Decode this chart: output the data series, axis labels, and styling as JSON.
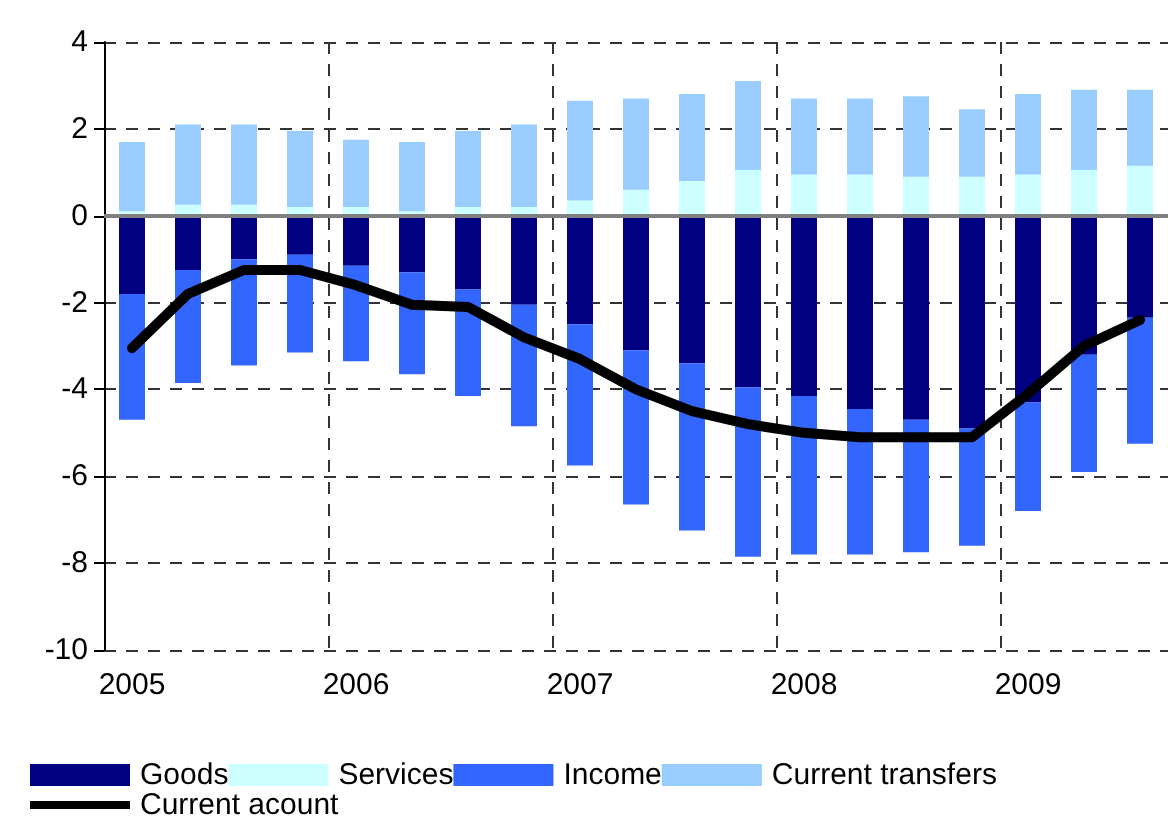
{
  "chart_data": {
    "type": "bar",
    "stacked": true,
    "categories": [
      "2005",
      null,
      null,
      null,
      "2006",
      null,
      null,
      null,
      "2007",
      null,
      null,
      null,
      "2008",
      null,
      null,
      null,
      "2009",
      null,
      null
    ],
    "series": [
      {
        "name": "Goods",
        "color": "#000080",
        "values": [
          -1.8,
          -1.25,
          -1.0,
          -0.9,
          -1.15,
          -1.3,
          -1.7,
          -2.05,
          -2.5,
          -3.1,
          -3.4,
          -3.95,
          -4.15,
          -4.45,
          -4.7,
          -4.9,
          -4.3,
          -3.2,
          -2.35
        ]
      },
      {
        "name": "Services",
        "color": "#ccffff",
        "values": [
          0.1,
          0.25,
          0.25,
          0.2,
          0.2,
          0.1,
          0.2,
          0.2,
          0.35,
          0.6,
          0.8,
          1.05,
          0.95,
          0.95,
          0.9,
          0.9,
          0.95,
          1.05,
          1.15
        ]
      },
      {
        "name": "Income",
        "color": "#3366ff",
        "values": [
          -2.9,
          -2.6,
          -2.45,
          -2.25,
          -2.2,
          -2.35,
          -2.45,
          -2.8,
          -3.25,
          -3.55,
          -3.85,
          -3.9,
          -3.65,
          -3.35,
          -3.05,
          -2.7,
          -2.5,
          -2.7,
          -2.9
        ]
      },
      {
        "name": "Current transfers",
        "color": "#99ccff",
        "values": [
          1.6,
          1.85,
          1.85,
          1.75,
          1.55,
          1.6,
          1.75,
          1.9,
          2.3,
          2.1,
          2.0,
          2.05,
          1.75,
          1.75,
          1.85,
          1.55,
          1.85,
          1.85,
          1.75
        ]
      },
      {
        "name": "Current acount",
        "type": "line",
        "color": "#000000",
        "values": [
          -3.05,
          -1.8,
          -1.25,
          -1.25,
          -1.6,
          -2.05,
          -2.1,
          -2.8,
          -3.3,
          -4.0,
          -4.5,
          -4.8,
          -5.0,
          -5.1,
          -5.1,
          -5.1,
          -4.1,
          -3.0,
          -2.4
        ]
      }
    ],
    "ylim": [
      -10,
      4
    ],
    "yticks": [
      -10,
      -8,
      -6,
      -4,
      -2,
      0,
      2,
      4
    ],
    "grid": true,
    "legend": "bottom",
    "marker": "none",
    "ref_lines": [
      {
        "axis": "y",
        "value": 0,
        "color": "#808080"
      }
    ]
  }
}
